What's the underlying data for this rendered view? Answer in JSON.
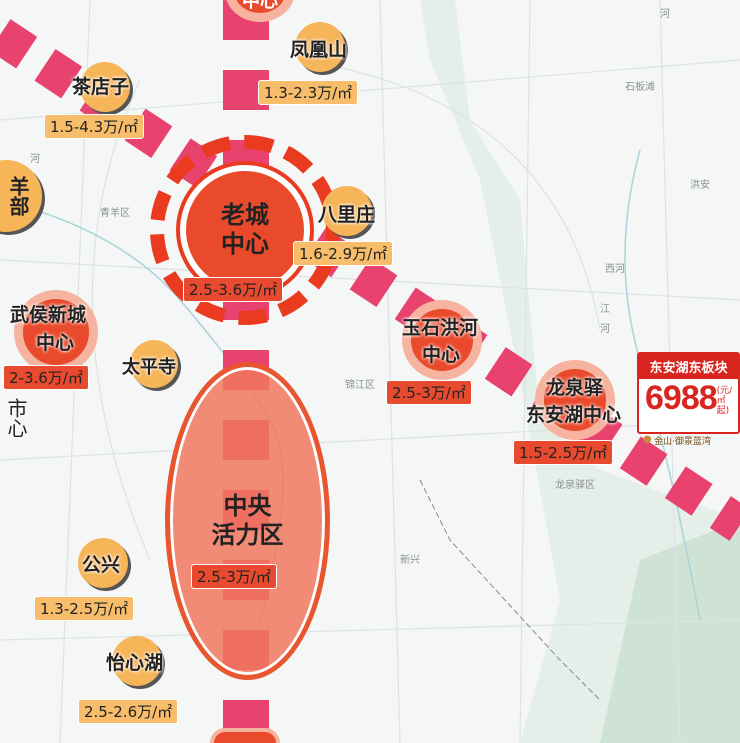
{
  "colors": {
    "band": "#e8426f",
    "hub_red": "#ea4a2c",
    "hub_orange": "#f7b55a",
    "card_red": "#d9251f"
  },
  "place_labels": [
    "石板滩",
    "洪安",
    "西河",
    "青羊区",
    "锦江区",
    "龙泉驿区",
    "新兴",
    "河",
    "河",
    "江",
    "河"
  ],
  "hubs": {
    "top_center": {
      "name": "中心"
    },
    "fenghuangshan": {
      "name": "凤凰山",
      "price": "1.3-2.3万/㎡"
    },
    "chadianzi": {
      "name": "茶店子",
      "price": "1.5-4.3万/㎡"
    },
    "qingyang": {
      "name": "羊部"
    },
    "old_city": {
      "name1": "老城",
      "name2": "中心",
      "price": "2.5-3.6万/㎡"
    },
    "balizhuang": {
      "name": "八里庄",
      "price": "1.6-2.9万/㎡"
    },
    "wuhou": {
      "name1": "武侯新城",
      "name2": "中心",
      "price": "2-3.6万/㎡"
    },
    "taipingsi": {
      "name": "太平寺"
    },
    "left_cut": {
      "name": "市心"
    },
    "yushi": {
      "name1": "玉石洪河",
      "name2": "中心",
      "price": "2.5-3万/㎡"
    },
    "longquan": {
      "name1": "龙泉驿",
      "name2": "东安湖中心",
      "price": "1.5-2.5万/㎡"
    },
    "central": {
      "name1": "中央",
      "name2": "活力区",
      "price": "2.5-3万/㎡"
    },
    "gongxing": {
      "name": "公兴",
      "price": "1.3-2.5万/㎡"
    },
    "yixinhu": {
      "name": "怡心湖",
      "price": "2.5-2.6万/㎡"
    }
  },
  "promo_card": {
    "title": "东安湖东板块",
    "price": "6988",
    "unit": "(元/㎡起)",
    "project": "金山·御景蓝湾",
    "icon": "map-pin-icon"
  }
}
